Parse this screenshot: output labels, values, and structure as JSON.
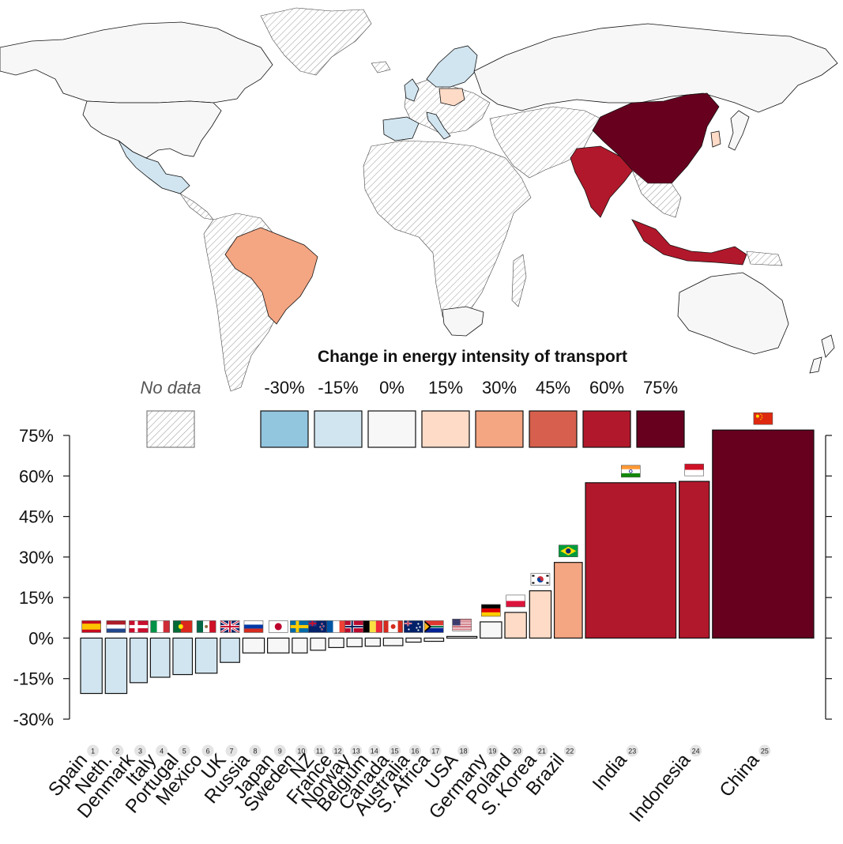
{
  "legend": {
    "title": "Change in energy intensity of transport",
    "no_data_label": "No data",
    "bins": [
      {
        "label": "-30%",
        "color": "#92c5de"
      },
      {
        "label": "-15%",
        "color": "#d1e5f0"
      },
      {
        "label": "0%",
        "color": "#f7f7f7"
      },
      {
        "label": "15%",
        "color": "#fddbc7"
      },
      {
        "label": "30%",
        "color": "#f4a582"
      },
      {
        "label": "45%",
        "color": "#d6604d"
      },
      {
        "label": "60%",
        "color": "#b2182b"
      },
      {
        "label": "75%",
        "color": "#67001f"
      }
    ]
  },
  "map": {
    "country_colors": {
      "north_america_north": "#f7f7f7",
      "usa": "#f7f7f7",
      "mexico": "#d1e5f0",
      "brazil": "#f4a582",
      "spain_portugal": "#d1e5f0",
      "italy": "#d1e5f0",
      "scandinavia": "#d1e5f0",
      "poland": "#fddbc7",
      "china": "#67001f",
      "india": "#b2182b",
      "indonesia": "#b2182b",
      "korea": "#fddbc7",
      "russia": "#f7f7f7",
      "australia": "#f7f7f7",
      "south_africa": "#f7f7f7"
    }
  },
  "chart_data": {
    "type": "bar",
    "ylabel": "",
    "ylim": [
      -30,
      75
    ],
    "yticks": [
      "75%",
      "60%",
      "45%",
      "30%",
      "15%",
      "0%",
      "-15%",
      "-30%"
    ],
    "ytick_values": [
      75,
      60,
      45,
      30,
      15,
      0,
      -15,
      -30
    ],
    "categories": [
      "Spain",
      "Neth.",
      "Denmark",
      "Italy",
      "Portugal",
      "Mexico",
      "UK",
      "Russia",
      "Japan",
      "Sweden",
      "NZ",
      "France",
      "Norway",
      "Belgium",
      "Canada",
      "Australia",
      "S. Africa",
      "USA",
      "Germany",
      "Poland",
      "S. Korea",
      "Brazil",
      "India",
      "Indonesia",
      "China"
    ],
    "ranks": [
      "1",
      "2",
      "3",
      "4",
      "5",
      "6",
      "7",
      "8",
      "9",
      "10",
      "11",
      "12",
      "13",
      "14",
      "15",
      "16",
      "17",
      "18",
      "19",
      "20",
      "21",
      "22",
      "23",
      "24",
      "25"
    ],
    "values": [
      -20.5,
      -20.5,
      -16.5,
      -14.5,
      -13.5,
      -13,
      -9,
      -5.5,
      -5.5,
      -5.5,
      -4.5,
      -3.5,
      -3.2,
      -3,
      -2.8,
      -1.5,
      -1.2,
      0.6,
      6,
      9.5,
      17.5,
      28,
      57.5,
      58,
      77
    ],
    "relative_widths": [
      1,
      1,
      0.8,
      0.9,
      0.9,
      1,
      0.9,
      1,
      1,
      0.7,
      0.7,
      0.7,
      0.7,
      0.7,
      0.9,
      0.7,
      0.9,
      1.4,
      1,
      1,
      1,
      1.3,
      4.2,
      1.4,
      4.7
    ],
    "colors": [
      "#d1e5f0",
      "#d1e5f0",
      "#d1e5f0",
      "#d1e5f0",
      "#d1e5f0",
      "#d1e5f0",
      "#d1e5f0",
      "#f7f7f7",
      "#f7f7f7",
      "#f7f7f7",
      "#f7f7f7",
      "#f7f7f7",
      "#f7f7f7",
      "#f7f7f7",
      "#f7f7f7",
      "#f7f7f7",
      "#f7f7f7",
      "#f7f7f7",
      "#f7f7f7",
      "#fddbc7",
      "#fddbc7",
      "#f4a582",
      "#b2182b",
      "#b2182b",
      "#67001f"
    ],
    "flags": [
      "spain-flag",
      "netherlands-flag",
      "denmark-flag",
      "italy-flag",
      "portugal-flag",
      "mexico-flag",
      "uk-flag",
      "russia-flag",
      "japan-flag",
      "sweden-flag",
      "new-zealand-flag",
      "france-flag",
      "norway-flag",
      "belgium-flag",
      "canada-flag",
      "australia-flag",
      "south-africa-flag",
      "usa-flag",
      "germany-flag",
      "poland-flag",
      "south-korea-flag",
      "brazil-flag",
      "india-flag",
      "indonesia-flag",
      "china-flag"
    ],
    "grid": false
  }
}
